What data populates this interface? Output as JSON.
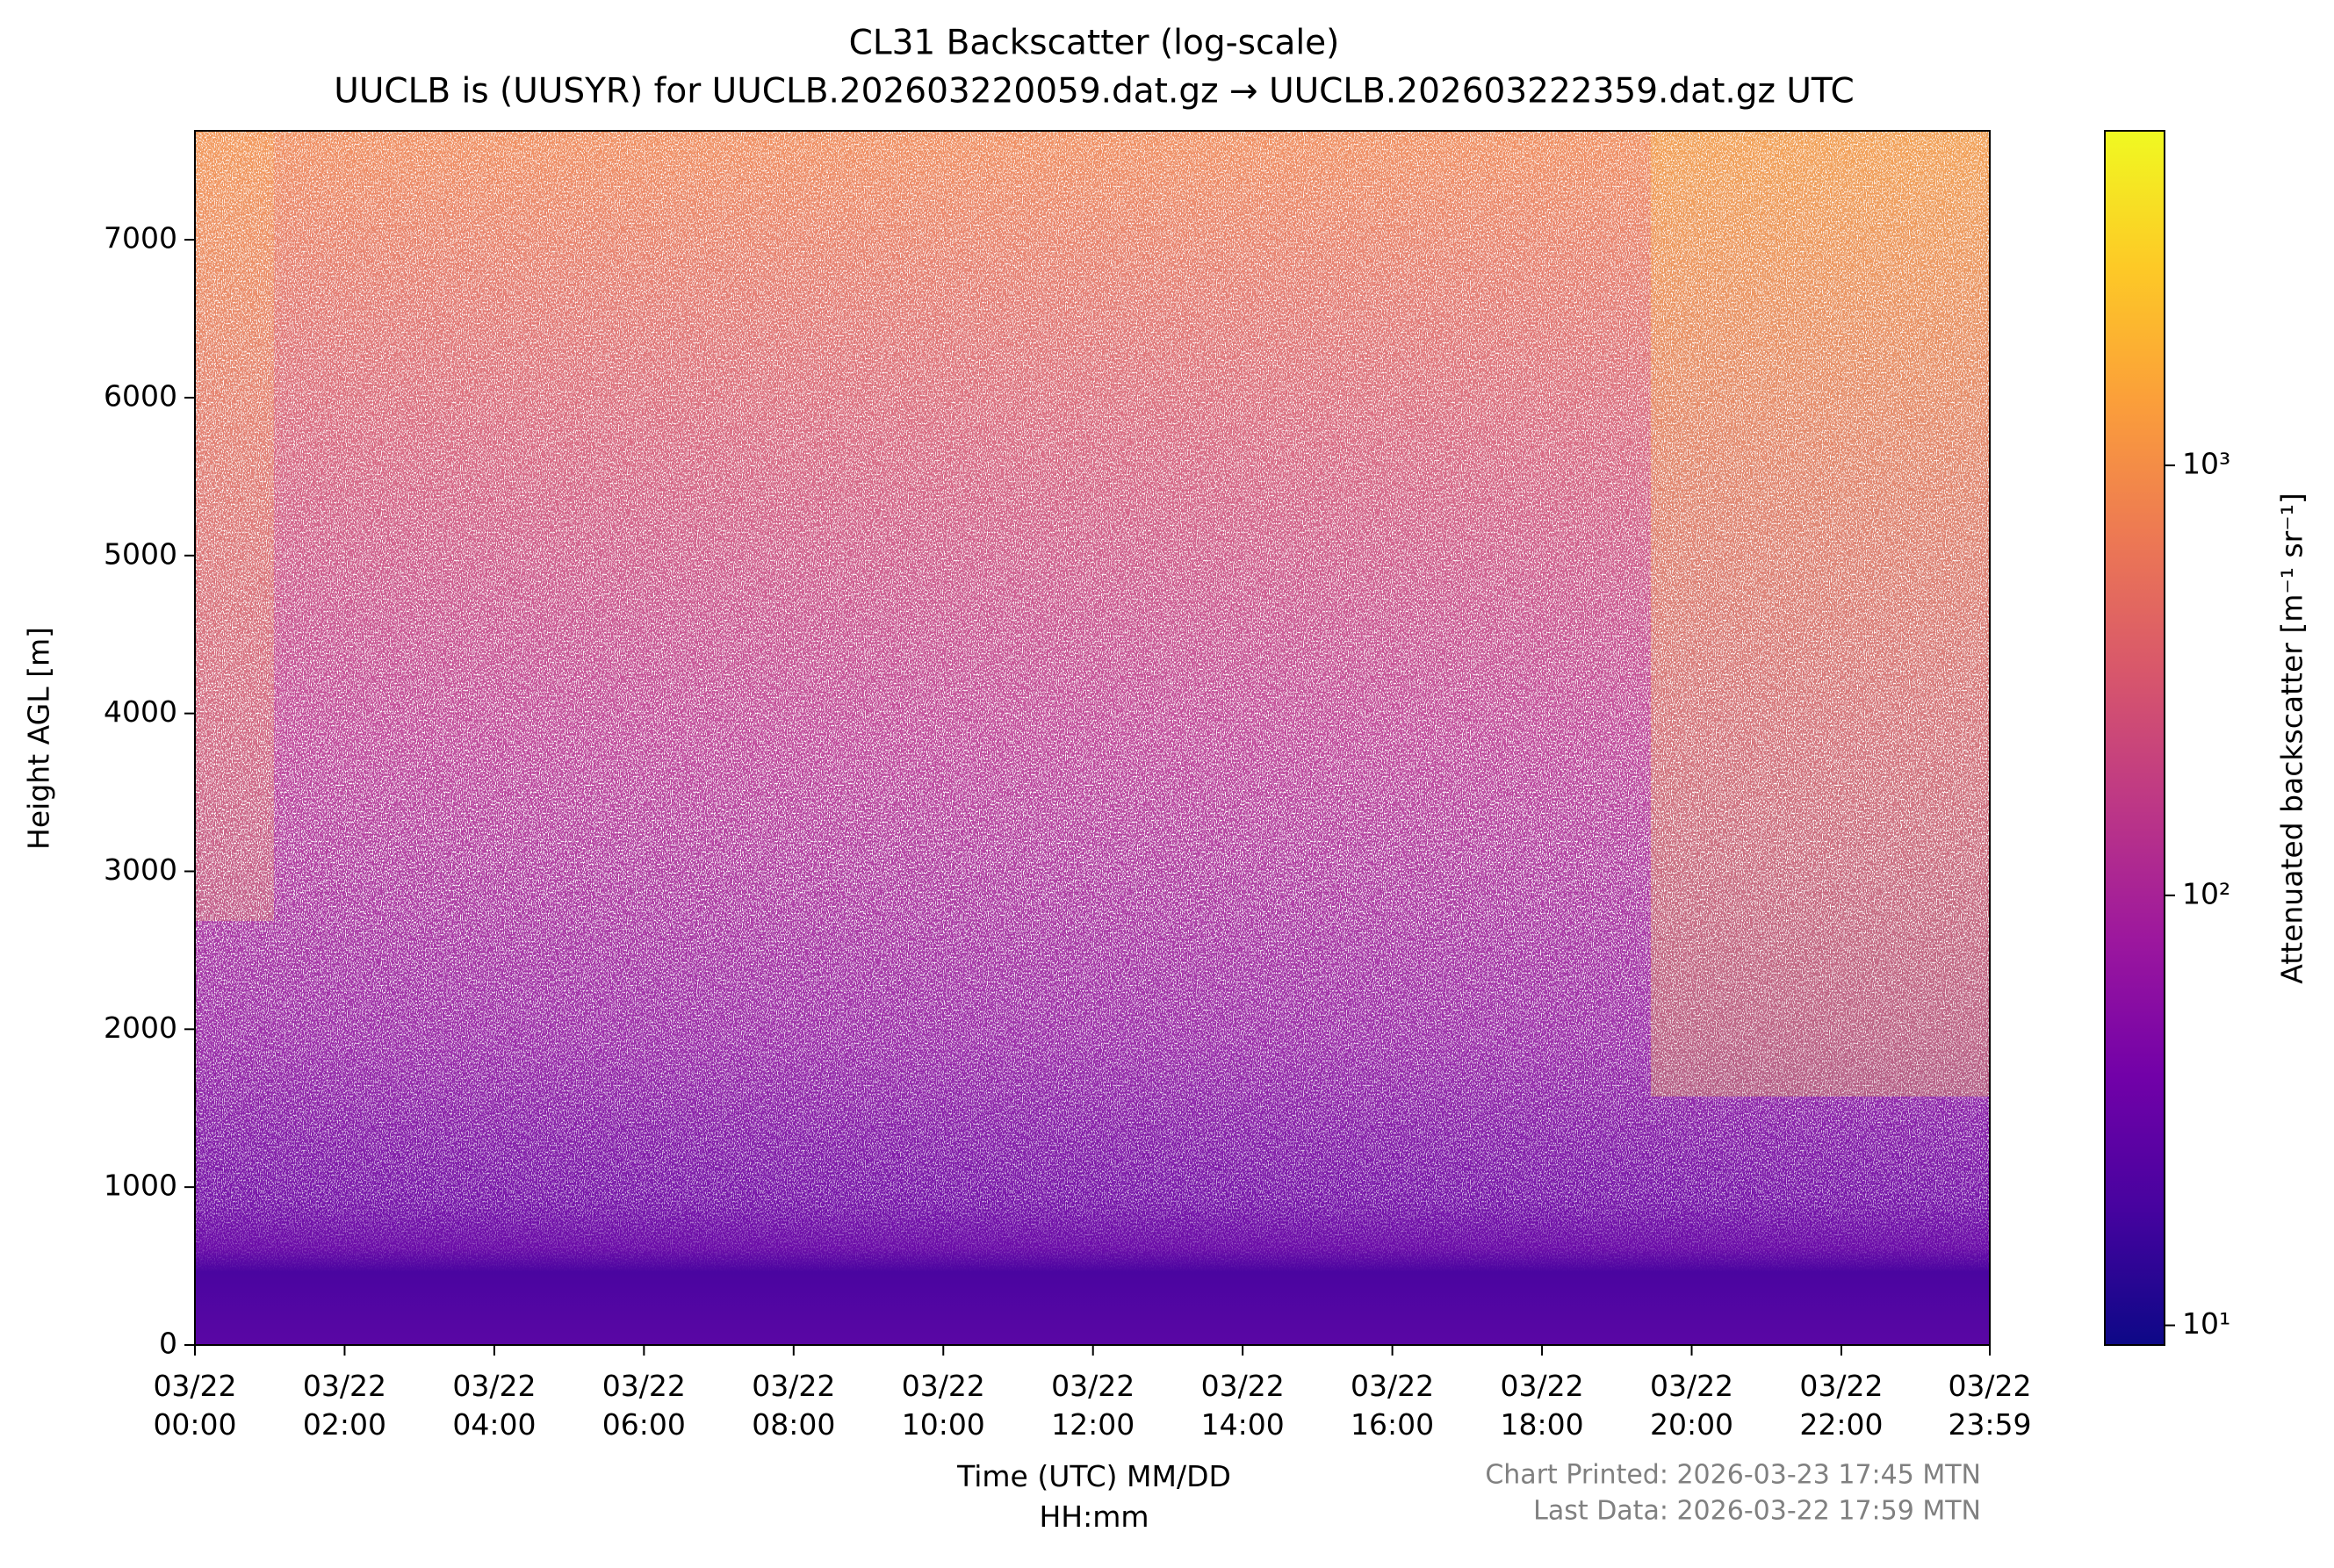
{
  "chart_data": {
    "type": "heatmap",
    "title": "CL31 Backscatter (log-scale)",
    "subtitle": "UUCLB is (UUSYR) for UUCLB.202603220059.dat.gz → UUCLB.202603222359.dat.gz UTC",
    "x_label": "Time (UTC) MM/DD\nHH:mm",
    "y_label": "Height AGL [m]",
    "colorbar_label": "Attenuated backscatter [m⁻¹ sr⁻¹]",
    "xlim": [
      0,
      1439
    ],
    "xticks": [
      {
        "value": 0,
        "label": "03/22\n00:00"
      },
      {
        "value": 120,
        "label": "03/22\n02:00"
      },
      {
        "value": 240,
        "label": "03/22\n04:00"
      },
      {
        "value": 360,
        "label": "03/22\n06:00"
      },
      {
        "value": 480,
        "label": "03/22\n08:00"
      },
      {
        "value": 600,
        "label": "03/22\n10:00"
      },
      {
        "value": 720,
        "label": "03/22\n12:00"
      },
      {
        "value": 840,
        "label": "03/22\n14:00"
      },
      {
        "value": 960,
        "label": "03/22\n16:00"
      },
      {
        "value": 1080,
        "label": "03/22\n18:00"
      },
      {
        "value": 1200,
        "label": "03/22\n20:00"
      },
      {
        "value": 1320,
        "label": "03/22\n22:00"
      },
      {
        "value": 1439,
        "label": "03/22\n23:59"
      }
    ],
    "ylim": [
      0,
      7690
    ],
    "yticks": [
      0,
      1000,
      2000,
      3000,
      4000,
      5000,
      6000,
      7000
    ],
    "clim": [
      9,
      6000
    ],
    "color_log_scale": true,
    "cticks": [
      {
        "value": 10,
        "label": "10¹"
      },
      {
        "value": 100,
        "label": "10²"
      },
      {
        "value": 1000,
        "label": "10³"
      }
    ],
    "colormap": [
      "#0d0887",
      "#46039f",
      "#7201a8",
      "#9c179e",
      "#bd3786",
      "#d8576b",
      "#ed7953",
      "#fb9f3a",
      "#fdca26",
      "#f0f921"
    ],
    "footer": [
      "Chart Printed: 2026-03-23 17:45 MTN",
      "Last Data: 2026-03-22 17:59 MTN"
    ]
  }
}
